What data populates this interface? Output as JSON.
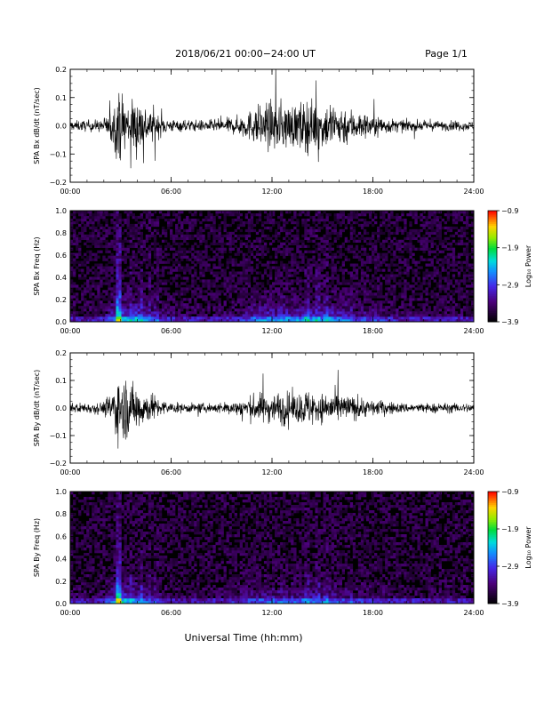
{
  "header": {
    "title": "2018/06/21  00:00−24:00 UT",
    "page": "Page 1/1"
  },
  "xlabel": "Universal Time (hh:mm)",
  "chart_data": [
    {
      "type": "line",
      "ylabel": "SPA Bx dB/dt (nT/sec)",
      "xlim": [
        0,
        24
      ],
      "ylim": [
        -0.2,
        0.2
      ],
      "yticks": [
        "0.2",
        "0.1",
        "0.0",
        "−0.1",
        "−0.2"
      ],
      "xticks": [
        "00:00",
        "06:00",
        "12:00",
        "18:00",
        "24:00"
      ],
      "envelope": {
        "x": [
          0,
          1,
          2,
          2.5,
          2.8,
          3.2,
          3.6,
          4.0,
          4.5,
          5.0,
          5.4,
          6.0,
          7.0,
          8.0,
          9.0,
          10.0,
          10.8,
          11.5,
          12.0,
          12.5,
          13.0,
          13.5,
          14.0,
          14.5,
          15.0,
          15.5,
          16.0,
          16.5,
          17.0,
          17.5,
          18.0,
          18.5,
          19.0,
          20.0,
          21.0,
          22.0,
          23.0,
          24.0
        ],
        "amplitude": [
          0.03,
          0.035,
          0.04,
          0.12,
          0.2,
          0.2,
          0.15,
          0.2,
          0.12,
          0.1,
          0.06,
          0.04,
          0.035,
          0.035,
          0.04,
          0.06,
          0.1,
          0.15,
          0.14,
          0.16,
          0.14,
          0.13,
          0.17,
          0.15,
          0.13,
          0.16,
          0.13,
          0.12,
          0.09,
          0.08,
          0.07,
          0.06,
          0.045,
          0.035,
          0.03,
          0.03,
          0.03,
          0.03
        ]
      }
    },
    {
      "type": "heatmap",
      "ylabel": "SPA Bx Freq (Hz)",
      "xlim": [
        0,
        24
      ],
      "ylim": [
        0.0,
        1.0
      ],
      "yticks": [
        "1.0",
        "0.8",
        "0.6",
        "0.4",
        "0.2",
        "0.0"
      ],
      "xticks": [
        "00:00",
        "06:00",
        "12:00",
        "18:00",
        "24:00"
      ],
      "colorbar": {
        "label": "Log₁₀ Power",
        "ticks": [
          "−0.9",
          "−1.9",
          "−2.9",
          "−3.9"
        ],
        "range": [
          -3.9,
          -0.9
        ]
      }
    },
    {
      "type": "line",
      "ylabel": "SPA By dB/dt (nT/sec)",
      "xlim": [
        0,
        24
      ],
      "ylim": [
        -0.2,
        0.2
      ],
      "yticks": [
        "0.2",
        "0.1",
        "0.0",
        "−0.1",
        "−0.2"
      ],
      "xticks": [
        "00:00",
        "06:00",
        "12:00",
        "18:00",
        "24:00"
      ],
      "envelope": {
        "x": [
          0,
          1,
          2,
          2.5,
          2.8,
          3.2,
          3.6,
          4.0,
          4.5,
          5.0,
          5.4,
          6.0,
          7.0,
          8.0,
          9.0,
          10.0,
          10.8,
          11.5,
          12.0,
          12.5,
          13.0,
          13.5,
          14.0,
          14.5,
          15.0,
          15.5,
          16.0,
          16.5,
          17.0,
          17.5,
          18.0,
          18.5,
          19.0,
          20.0,
          21.0,
          22.0,
          23.0,
          24.0
        ],
        "amplitude": [
          0.03,
          0.035,
          0.04,
          0.12,
          0.2,
          0.2,
          0.16,
          0.15,
          0.1,
          0.08,
          0.05,
          0.035,
          0.03,
          0.03,
          0.035,
          0.05,
          0.08,
          0.1,
          0.09,
          0.11,
          0.1,
          0.09,
          0.12,
          0.11,
          0.09,
          0.11,
          0.09,
          0.08,
          0.07,
          0.06,
          0.05,
          0.045,
          0.04,
          0.03,
          0.03,
          0.03,
          0.03,
          0.03
        ]
      }
    },
    {
      "type": "heatmap",
      "ylabel": "SPA By Freq (Hz)",
      "xlim": [
        0,
        24
      ],
      "ylim": [
        0.0,
        1.0
      ],
      "yticks": [
        "1.0",
        "0.8",
        "0.6",
        "0.4",
        "0.2",
        "0.0"
      ],
      "xticks": [
        "00:00",
        "06:00",
        "12:00",
        "18:00",
        "24:00"
      ],
      "colorbar": {
        "label": "Log₁₀ Power",
        "ticks": [
          "−0.9",
          "−1.9",
          "−2.9",
          "−3.9"
        ],
        "range": [
          -3.9,
          -0.9
        ]
      }
    }
  ]
}
